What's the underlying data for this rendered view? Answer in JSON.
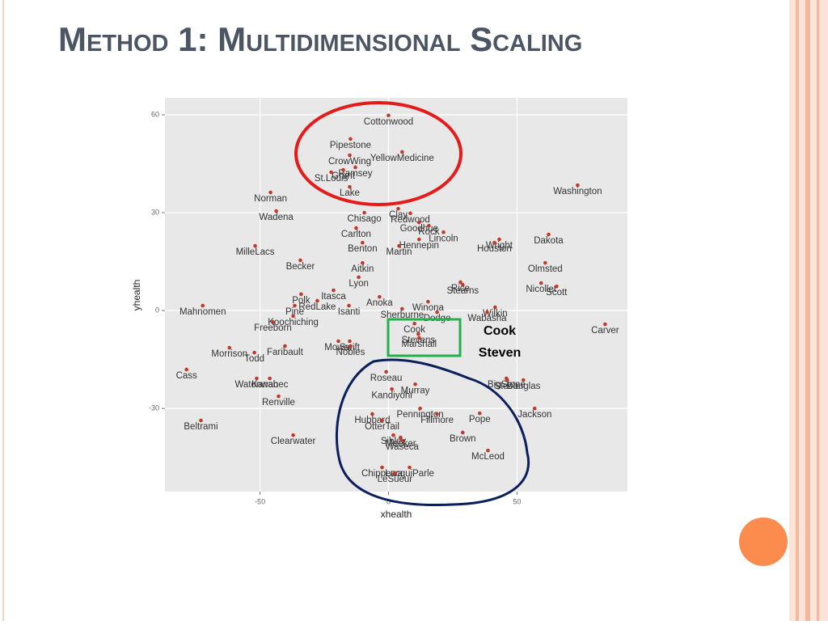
{
  "chart_data": {
    "type": "scatter",
    "title": "Method 1: Multidimensional Scaling",
    "x_label": "xhealth",
    "y_label": "yhealth",
    "xlim": [
      -87,
      93
    ],
    "ylim": [
      -55.5,
      65.2
    ],
    "xticks": [
      -50,
      0,
      50
    ],
    "yticks": [
      -30,
      0,
      30,
      60
    ],
    "grid": true,
    "annotations": [
      "Cook",
      "Steven"
    ],
    "series": [
      {
        "color": "#c0392b",
        "labels": [
          "Cottonwood",
          "Pipestone",
          "YellowMedicine",
          "CrowWing",
          "Ramsey",
          "Grant",
          "St.Louis",
          "Lake",
          "Norman",
          "Washington",
          "Wadena",
          "Clay",
          "Chisago",
          "Redwood",
          "Goodhue",
          "Rock",
          "Lincoln",
          "Carlton",
          "Dakota",
          "Wright",
          "Houston",
          "Hennepin",
          "Martin",
          "Benton",
          "MilleLacs",
          "Becker",
          "Olmsted",
          "Aitkin",
          "Lyon",
          "Rice",
          "Stearns",
          "Nicollet",
          "Scott",
          "Itasca",
          "Polk",
          "RedLake",
          "Anoka",
          "Pine",
          "Isanti",
          "Mahnomen",
          "Winona",
          "Wilkin",
          "Sherburne",
          "Dodge",
          "Wabasha",
          "Koochiching",
          "Freeborn",
          "Carver",
          "Cook",
          "Stevens",
          "Marshall",
          "Mower",
          "Swift",
          "Nobles",
          "Faribault",
          "Morrison",
          "Todd",
          "Cass",
          "Roseau",
          "Murray",
          "BigStone",
          "Steele",
          "Douglas",
          "Watonwan",
          "Kanabec",
          "Kandiyohi",
          "Renville",
          "Pennington",
          "Fillmore",
          "Pope",
          "Jackson",
          "Hubbard",
          "OtterTail",
          "Beltrami",
          "Sibley",
          "Meeker",
          "Waseca",
          "Brown",
          "Clearwater",
          "McLeod",
          "Chippewa",
          "LacquiParle",
          "LeSueur"
        ],
        "x": [
          0,
          -14.8,
          5.3,
          -15.1,
          -12.9,
          -17.6,
          -22.3,
          -15.1,
          -45.9,
          73.6,
          -43.7,
          3.8,
          -9.4,
          8.5,
          11.9,
          15.7,
          21.4,
          -12.6,
          62.3,
          43.1,
          41.2,
          11.9,
          4.1,
          -10.1,
          -51.9,
          -34.3,
          61,
          -10.1,
          -11.6,
          28,
          28.9,
          59.4,
          65.4,
          -21.4,
          -34,
          -27.7,
          -3.5,
          -36.5,
          -15.4,
          -72.3,
          15.4,
          41.5,
          5.3,
          18.9,
          38.4,
          -37.1,
          -45,
          84.3,
          10.1,
          11.6,
          11.9,
          -19.5,
          -15.1,
          -14.8,
          -40.3,
          -61.9,
          -52.2,
          -78.6,
          -0.9,
          10.4,
          45.9,
          46.2,
          52.5,
          -51.3,
          -46.2,
          1.3,
          -42.8,
          12.3,
          18.9,
          35.5,
          56.9,
          -6.3,
          -2.5,
          -73,
          1.9,
          4.7,
          5.3,
          28.9,
          -37.1,
          38.7,
          -2.5,
          8.2,
          2.5
        ],
        "values": [
          59.8,
          52.6,
          48.6,
          47.6,
          43.9,
          43.1,
          42.4,
          37.9,
          36.2,
          38.4,
          30.5,
          31.2,
          30,
          29.8,
          27,
          26,
          24,
          25.3,
          23.3,
          21.8,
          20.8,
          21.8,
          19.8,
          20.8,
          19.8,
          15.4,
          14.6,
          14.6,
          10.2,
          8.7,
          7.9,
          8.4,
          7.4,
          6.2,
          5,
          3,
          4.2,
          1.5,
          1.5,
          1.5,
          2.7,
          1,
          0.5,
          -0.5,
          -0.5,
          -1.7,
          -3.5,
          -4.2,
          -4,
          -7.2,
          -8.4,
          -9.4,
          -9.4,
          -10.9,
          -10.9,
          -11.4,
          -12.9,
          -18.1,
          -18.8,
          -22.6,
          -20.8,
          -21.3,
          -21.3,
          -20.8,
          -20.8,
          -24.1,
          -26.3,
          -30,
          -31.7,
          -31.5,
          -30,
          -31.7,
          -33.7,
          -33.7,
          -38.2,
          -38.9,
          -39.9,
          -37.4,
          -38.2,
          -42.9,
          -48.1,
          -48.1,
          -49.8
        ]
      }
    ]
  }
}
